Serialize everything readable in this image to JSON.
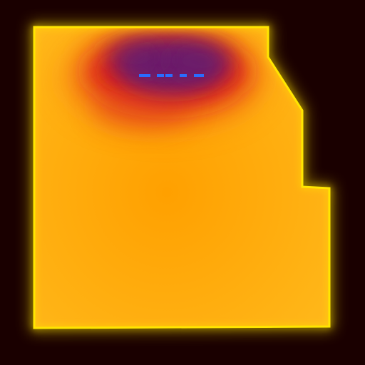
{
  "heatmap": {
    "colors": {
      "background": "#1a0000",
      "region_fill_base": "#ffa000",
      "region_fill_light": "#ffb81a",
      "border_glow": "#ffe600",
      "hot_red": "#d8141e",
      "hot_core": "#5a1a7a",
      "marker_blue": "#2a6cff"
    },
    "marker_dashes": [
      {
        "kind": "dash"
      },
      {
        "kind": "dash"
      },
      {
        "kind": "dash"
      },
      {
        "kind": "dash"
      },
      {
        "kind": "dash"
      }
    ]
  }
}
